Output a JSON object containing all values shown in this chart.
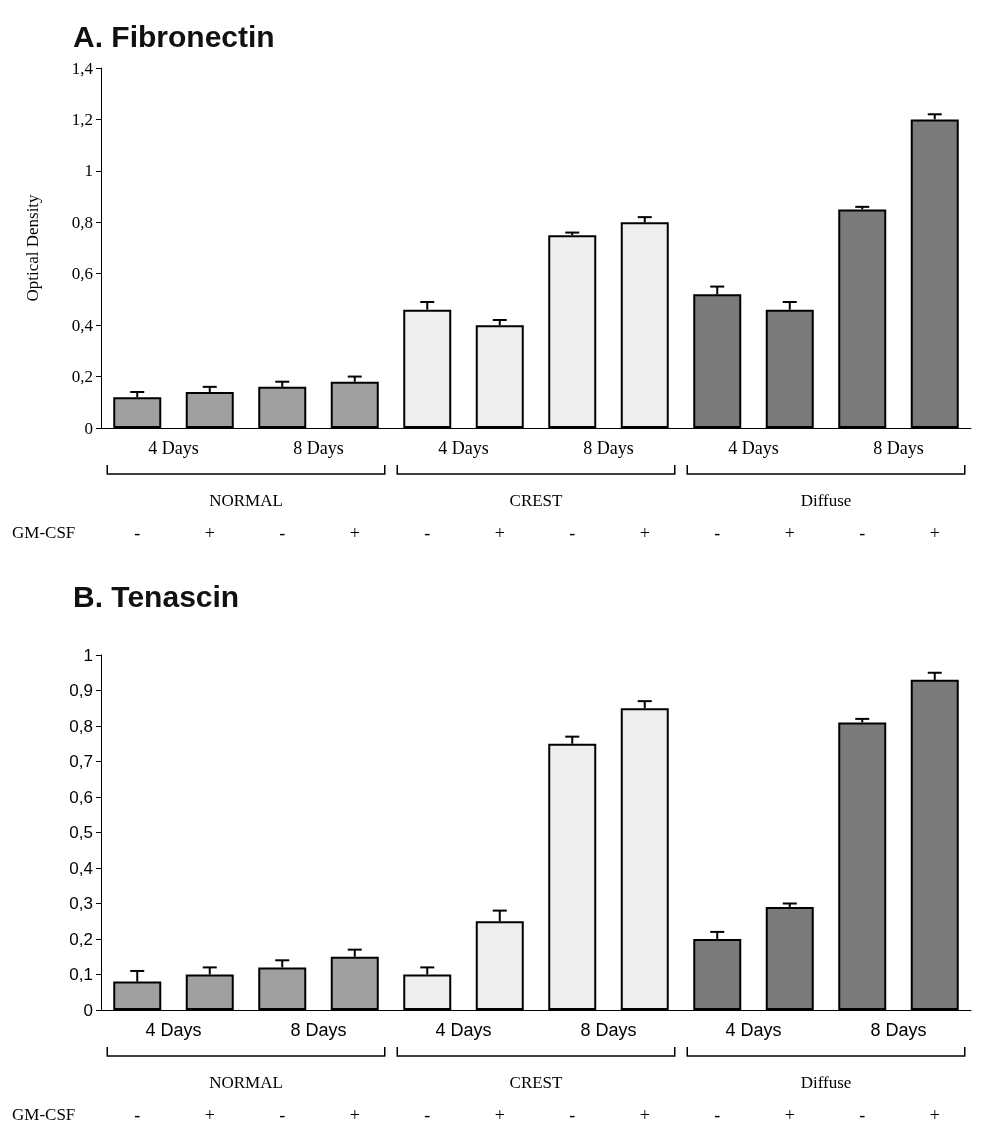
{
  "chart_data": [
    {
      "type": "bar",
      "title": "A. Fibronectin",
      "ylabel": "Optical Density",
      "xlabel": "GM-CSF",
      "categories": [
        "-",
        "+",
        "-",
        "+",
        "-",
        "+",
        "-",
        "+",
        "-",
        "+",
        "-",
        "+"
      ],
      "colors": [
        "#a0a0a0",
        "#a0a0a0",
        "#a0a0a0",
        "#a0a0a0",
        "#eeeeee",
        "#eeeeee",
        "#eeeeee",
        "#eeeeee",
        "#7a7a7a",
        "#7a7a7a",
        "#7a7a7a",
        "#7a7a7a"
      ],
      "values": [
        0.12,
        0.14,
        0.16,
        0.18,
        0.46,
        0.4,
        0.75,
        0.8,
        0.52,
        0.46,
        0.85,
        1.2
      ],
      "errors": [
        [
          0.12,
          0.14
        ],
        [
          0.14,
          0.16
        ],
        [
          0.16,
          0.18
        ],
        [
          0.18,
          0.2
        ],
        [
          0.46,
          0.49
        ],
        [
          0.4,
          0.42
        ],
        [
          0.75,
          0.76
        ],
        [
          0.8,
          0.82
        ],
        [
          0.52,
          0.55
        ],
        [
          0.46,
          0.49
        ],
        [
          0.85,
          0.86
        ],
        [
          1.2,
          1.22
        ]
      ],
      "annotations": [
        "4 Days",
        "8 Days",
        "4 Days",
        "8 Days",
        "4 Days",
        "8 Days",
        "NORMAL",
        "CREST",
        "Diffuse"
      ],
      "ylim": [
        0,
        1.4
      ],
      "yticks": [
        {
          "value": 0,
          "label": "0"
        },
        {
          "value": 0.2,
          "label": "0,2"
        },
        {
          "value": 0.4,
          "label": "0,4"
        },
        {
          "value": 0.6,
          "label": "0,6"
        },
        {
          "value": 0.8,
          "label": "0,8"
        },
        {
          "value": 1,
          "label": "1"
        },
        {
          "value": 1.2,
          "label": "1,2"
        },
        {
          "value": 1.4,
          "label": "1,4"
        }
      ],
      "grid": false
    },
    {
      "type": "bar",
      "title": "B. Tenascin",
      "xlabel": "GM-CSF",
      "categories": [
        "-",
        "+",
        "-",
        "+",
        "-",
        "+",
        "-",
        "+",
        "-",
        "+",
        "-",
        "+"
      ],
      "colors": [
        "#a0a0a0",
        "#a0a0a0",
        "#a0a0a0",
        "#a0a0a0",
        "#eeeeee",
        "#eeeeee",
        "#eeeeee",
        "#eeeeee",
        "#7a7a7a",
        "#7a7a7a",
        "#7a7a7a",
        "#7a7a7a"
      ],
      "values": [
        0.08,
        0.1,
        0.12,
        0.15,
        0.1,
        0.25,
        0.75,
        0.85,
        0.2,
        0.29,
        0.81,
        0.93
      ],
      "errors": [
        [
          0.08,
          0.11
        ],
        [
          0.1,
          0.12
        ],
        [
          0.12,
          0.14
        ],
        [
          0.15,
          0.17
        ],
        [
          0.1,
          0.12
        ],
        [
          0.25,
          0.28
        ],
        [
          0.75,
          0.77
        ],
        [
          0.85,
          0.87
        ],
        [
          0.2,
          0.22
        ],
        [
          0.29,
          0.3
        ],
        [
          0.81,
          0.82
        ],
        [
          0.93,
          0.95
        ]
      ],
      "annotations": [
        "4 Days",
        "8 Days",
        "4 Days",
        "8 Days",
        "4 Days",
        "8 Days",
        "NORMAL",
        "CREST",
        "Diffuse"
      ],
      "ylim": [
        0,
        1
      ],
      "yticks": [
        {
          "value": 0,
          "label": "0"
        },
        {
          "value": 0.1,
          "label": "0,1"
        },
        {
          "value": 0.2,
          "label": "0,2"
        },
        {
          "value": 0.3,
          "label": "0,3"
        },
        {
          "value": 0.4,
          "label": "0,4"
        },
        {
          "value": 0.5,
          "label": "0,5"
        },
        {
          "value": 0.6,
          "label": "0,6"
        },
        {
          "value": 0.7,
          "label": "0,7"
        },
        {
          "value": 0.8,
          "label": "0,8"
        },
        {
          "value": 0.9,
          "label": "0,9"
        },
        {
          "value": 1,
          "label": "1"
        }
      ],
      "grid": false
    }
  ]
}
